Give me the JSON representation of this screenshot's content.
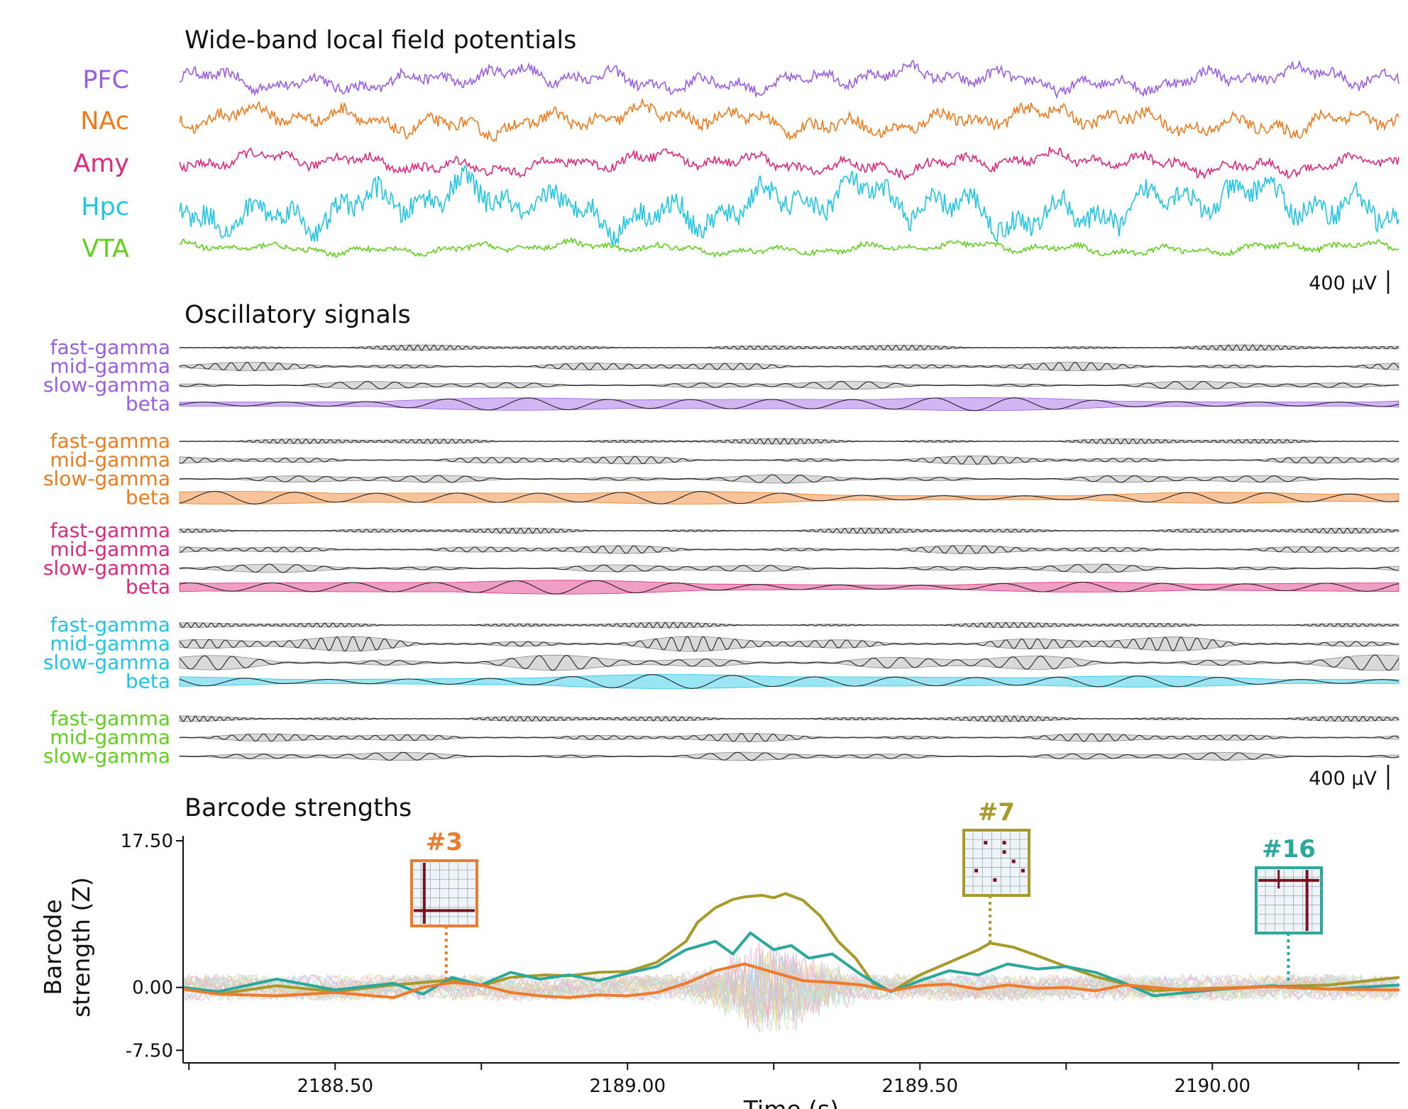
{
  "panels": {
    "wide_title": "Wide-band local field potentials",
    "osc_title": "Oscillatory signals",
    "barcode_title": "Barcode strengths"
  },
  "scalebars": {
    "wide": "400 µV",
    "osc": "400 µV"
  },
  "colors": {
    "PFC": "#9b5de5",
    "NAc": "#f07a1c",
    "Amy": "#e0287e",
    "Hpc": "#1ec6e6",
    "VTA": "#5fd11b",
    "barcode3": "#f07a2c",
    "barcode7": "#a89a28",
    "barcode16": "#2aa89c"
  },
  "regions": [
    "PFC",
    "NAc",
    "Amy",
    "Hpc",
    "VTA"
  ],
  "bands": [
    {
      "region": "PFC",
      "labels": [
        "fast-gamma",
        "mid-gamma",
        "slow-gamma",
        "beta"
      ]
    },
    {
      "region": "NAc",
      "labels": [
        "fast-gamma",
        "mid-gamma",
        "slow-gamma",
        "beta"
      ]
    },
    {
      "region": "Amy",
      "labels": [
        "fast-gamma",
        "mid-gamma",
        "slow-gamma",
        "beta"
      ]
    },
    {
      "region": "Hpc",
      "labels": [
        "fast-gamma",
        "mid-gamma",
        "slow-gamma",
        "beta"
      ]
    },
    {
      "region": "VTA",
      "labels": [
        "fast-gamma",
        "mid-gamma",
        "slow-gamma"
      ]
    }
  ],
  "barcodes": [
    {
      "label": "#3",
      "color_key": "barcode3",
      "time": 2188.69
    },
    {
      "label": "#7",
      "color_key": "barcode7",
      "time": 2189.62
    },
    {
      "label": "#16",
      "color_key": "barcode16",
      "time": 2190.13
    }
  ],
  "chart_data": {
    "type": "line",
    "xlabel": "Time (s)",
    "ylabel_line1": "Barcode",
    "ylabel_line2": "strength (Z)",
    "xlim": [
      2188.24,
      2190.32
    ],
    "ylim": [
      -9.0,
      17.5
    ],
    "x_ticks": [
      2188.5,
      2189.0,
      2189.5,
      2190.0
    ],
    "x_tick_labels": [
      "2188.50",
      "2189.00",
      "2189.50",
      "2190.00"
    ],
    "y_ticks": [
      17.5,
      0.0,
      -7.5
    ],
    "y_tick_labels": [
      "17.50",
      "0.00",
      "-7.50"
    ],
    "series": [
      {
        "name": "#7",
        "color_key": "barcode7",
        "x": [
          2188.24,
          2188.3,
          2188.4,
          2188.5,
          2188.6,
          2188.7,
          2188.75,
          2188.8,
          2188.86,
          2188.9,
          2188.95,
          2189.0,
          2189.05,
          2189.1,
          2189.12,
          2189.15,
          2189.18,
          2189.2,
          2189.23,
          2189.25,
          2189.27,
          2189.3,
          2189.33,
          2189.36,
          2189.39,
          2189.42,
          2189.45,
          2189.5,
          2189.55,
          2189.6,
          2189.62,
          2189.66,
          2189.7,
          2189.75,
          2189.8,
          2189.85,
          2189.9,
          2189.95,
          2190.0,
          2190.1,
          2190.2,
          2190.32
        ],
        "y": [
          0.0,
          -0.8,
          0.2,
          -0.5,
          0.3,
          0.9,
          0.2,
          1.2,
          1.5,
          1.4,
          1.8,
          1.9,
          3.0,
          5.5,
          7.8,
          9.5,
          10.5,
          10.8,
          11.0,
          10.7,
          11.2,
          10.4,
          8.5,
          5.5,
          3.5,
          0.5,
          -0.5,
          1.5,
          3.0,
          4.5,
          5.3,
          4.8,
          3.8,
          2.5,
          1.3,
          0.4,
          -0.4,
          -0.2,
          -0.1,
          0.1,
          0.3,
          1.2
        ]
      },
      {
        "name": "#16",
        "color_key": "barcode16",
        "x": [
          2188.24,
          2188.3,
          2188.4,
          2188.5,
          2188.6,
          2188.65,
          2188.7,
          2188.75,
          2188.8,
          2188.85,
          2188.9,
          2188.95,
          2189.0,
          2189.05,
          2189.1,
          2189.15,
          2189.18,
          2189.21,
          2189.25,
          2189.28,
          2189.31,
          2189.35,
          2189.4,
          2189.45,
          2189.5,
          2189.55,
          2189.6,
          2189.65,
          2189.7,
          2189.75,
          2189.8,
          2189.85,
          2189.9,
          2190.0,
          2190.1,
          2190.2,
          2190.32
        ],
        "y": [
          0.0,
          -0.5,
          1.0,
          -0.3,
          0.5,
          -0.8,
          1.2,
          0.3,
          1.8,
          1.0,
          1.5,
          0.8,
          1.7,
          2.5,
          4.5,
          5.5,
          4.0,
          6.5,
          4.5,
          5.0,
          3.5,
          4.0,
          1.5,
          -0.5,
          0.8,
          2.0,
          1.5,
          2.8,
          2.2,
          2.5,
          1.8,
          0.5,
          -1.0,
          -0.3,
          0.2,
          -0.2,
          0.3
        ]
      },
      {
        "name": "#3",
        "color_key": "barcode3",
        "x": [
          2188.24,
          2188.3,
          2188.4,
          2188.5,
          2188.6,
          2188.65,
          2188.7,
          2188.75,
          2188.8,
          2188.85,
          2188.9,
          2188.95,
          2189.0,
          2189.05,
          2189.1,
          2189.15,
          2189.2,
          2189.25,
          2189.3,
          2189.35,
          2189.4,
          2189.45,
          2189.5,
          2189.55,
          2189.6,
          2189.65,
          2189.7,
          2189.75,
          2189.8,
          2189.85,
          2189.9,
          2189.95,
          2190.0,
          2190.1,
          2190.2,
          2190.32
        ],
        "y": [
          -0.2,
          -0.8,
          -1.0,
          -0.6,
          -1.2,
          0.0,
          0.6,
          0.3,
          -0.6,
          -1.0,
          -1.2,
          -0.9,
          -1.0,
          -0.6,
          0.5,
          2.0,
          2.8,
          1.8,
          0.8,
          0.6,
          0.3,
          -0.4,
          0.2,
          0.4,
          -0.2,
          0.3,
          -0.1,
          0.0,
          -0.4,
          0.3,
          0.0,
          -0.3,
          -0.2,
          0.1,
          -0.2,
          -0.3
        ]
      }
    ]
  }
}
